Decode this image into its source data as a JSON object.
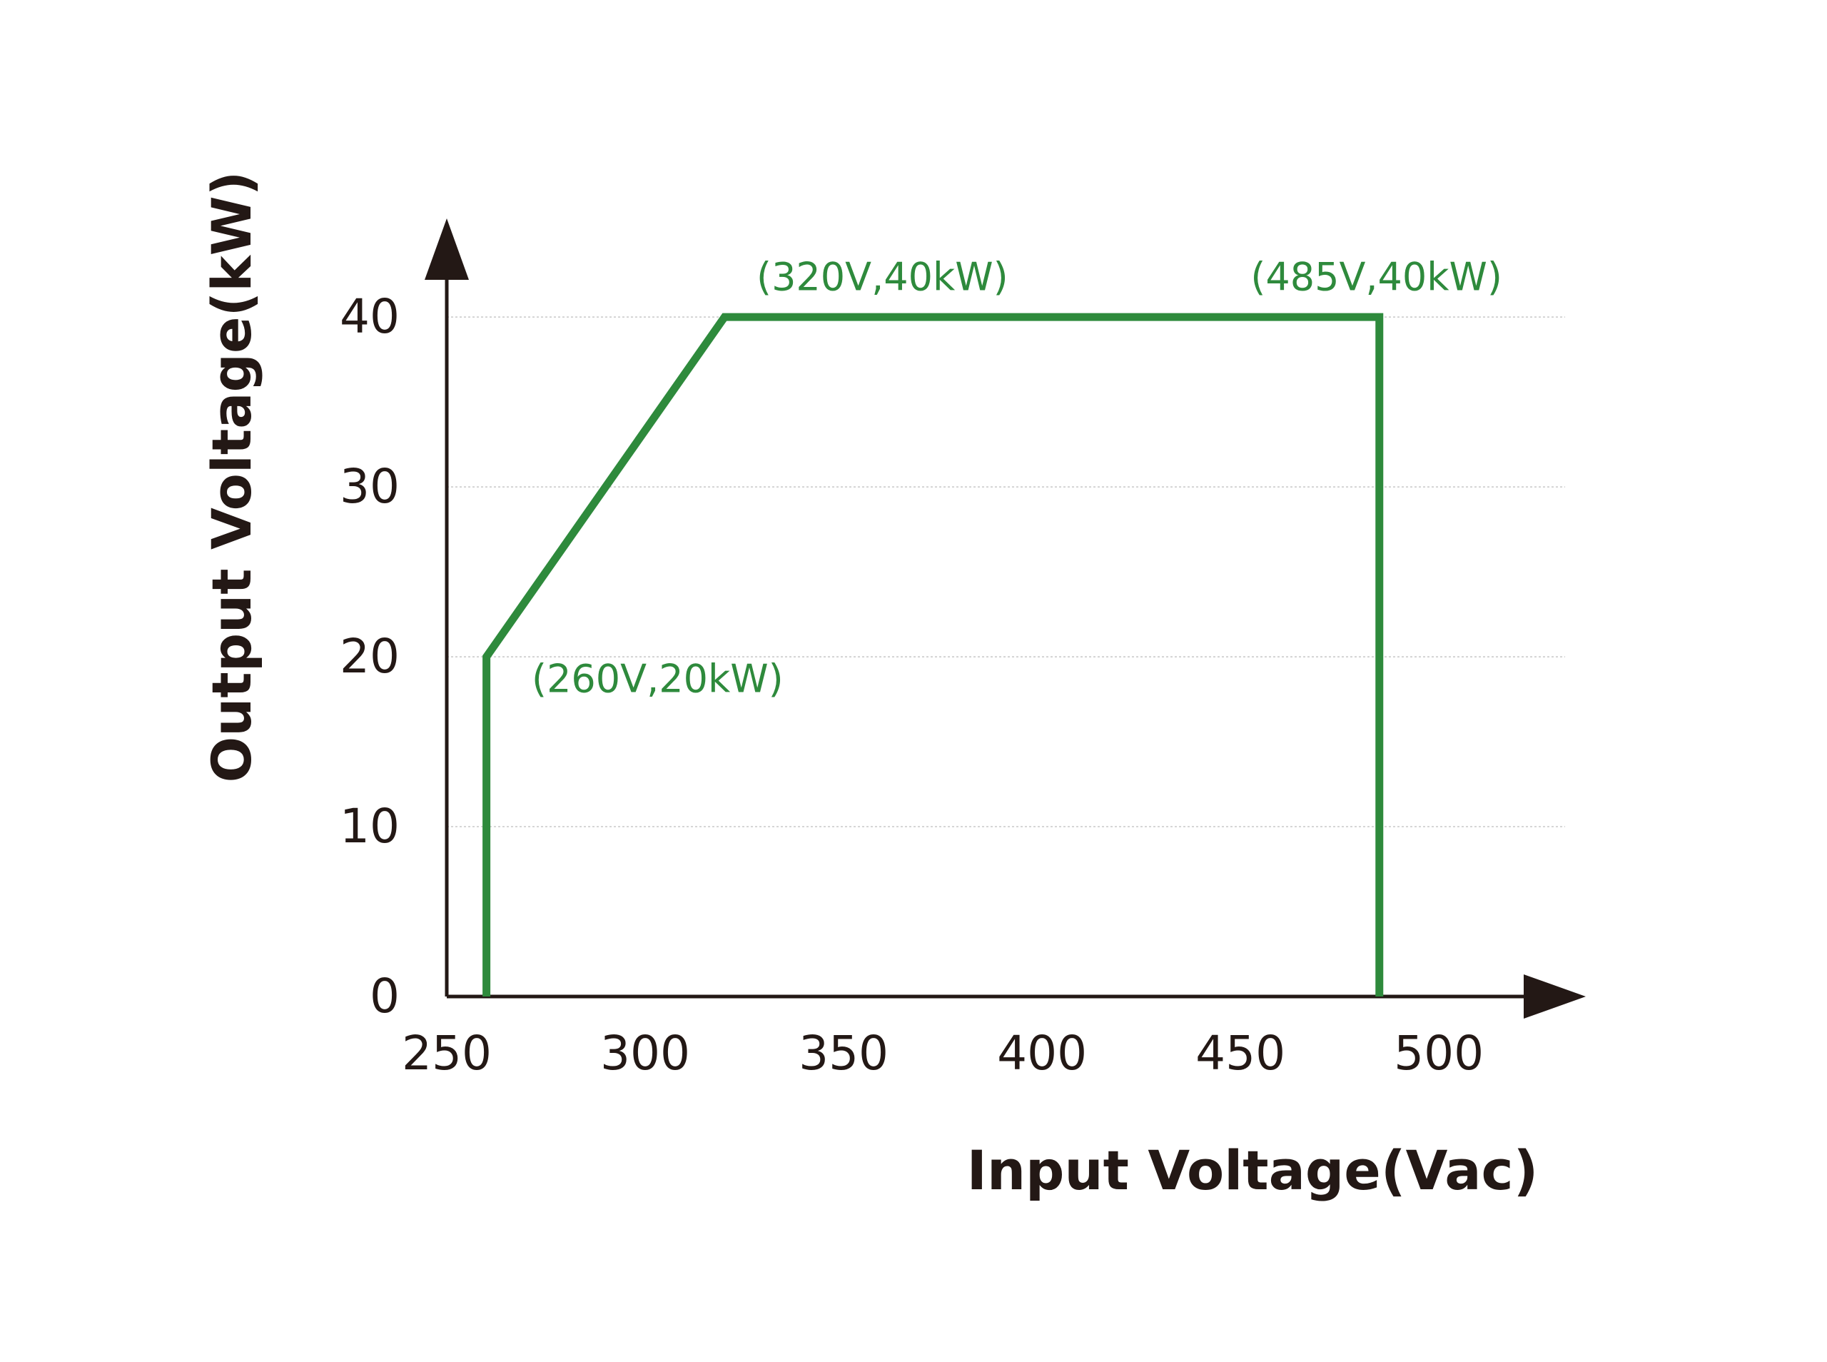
{
  "chart_data": {
    "type": "line",
    "x_label": "Input Voltage(Vac)",
    "y_label": "Output Voltage(kW)",
    "x": [
      260,
      260,
      320,
      485,
      485
    ],
    "series": [
      {
        "color": "#2e8a3c",
        "values": [
          0,
          20,
          40,
          40,
          0
        ]
      }
    ],
    "xlim": [
      250,
      530
    ],
    "xticks": [
      250,
      300,
      350,
      400,
      450,
      500
    ],
    "ylim": [
      0,
      44
    ],
    "yticks": [
      0,
      10,
      20,
      30,
      40
    ],
    "grid": true,
    "annotations": [
      "(260V,20kW)",
      "(320V,40kW)",
      "(485V,40kW)"
    ]
  }
}
